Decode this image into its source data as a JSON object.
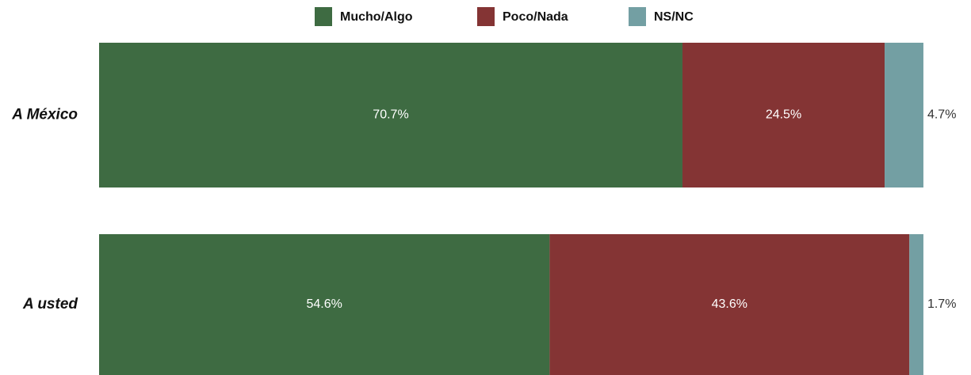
{
  "chart_data": {
    "type": "stacked-bar-horizontal",
    "categories": [
      "A México",
      "A usted"
    ],
    "series": [
      {
        "name": "Mucho/Algo",
        "color": "#3e6b42",
        "values": [
          70.7,
          54.6
        ],
        "value_labels": [
          "70.7%",
          "54.6%"
        ]
      },
      {
        "name": "Poco/Nada",
        "color": "#843434",
        "values": [
          24.5,
          43.6
        ],
        "value_labels": [
          "24.5%",
          "43.6%"
        ]
      },
      {
        "name": "NS/NC",
        "color": "#739fa3",
        "values": [
          4.7,
          1.7
        ],
        "value_labels": [
          "4.7%",
          "1.7%"
        ]
      }
    ],
    "xlim": [
      0,
      100
    ],
    "legend": "top"
  }
}
